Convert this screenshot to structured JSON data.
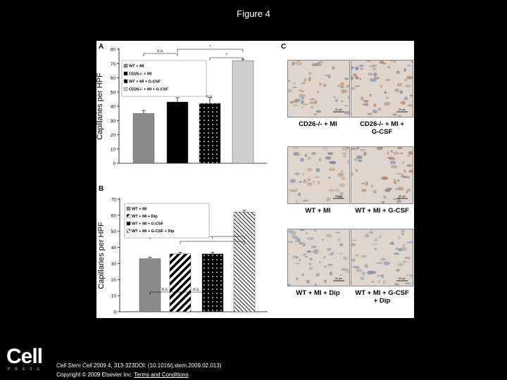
{
  "page_title": "Figure 4",
  "panels": {
    "a": "A",
    "b": "B",
    "c": "C"
  },
  "chart_data": [
    {
      "type": "bar",
      "panel": "A",
      "ylabel": "Capillaries per HPF",
      "ylim": [
        0,
        80
      ],
      "yticks": [
        0,
        10,
        20,
        30,
        40,
        50,
        60,
        70,
        80
      ],
      "categories": [
        "WT + MI",
        "CD26-/- + MI",
        "WT + MI + G-CSF",
        "CD26-/- + MI + G-CSF"
      ],
      "legend": [
        "WT + MI",
        "CD26-/- + MI",
        "WT + MI + G-CSF",
        "CD26-/- + MI + G-CSF"
      ],
      "values": [
        35,
        43,
        42,
        72
      ],
      "errors": [
        2,
        3,
        4,
        1
      ],
      "fills": [
        "#8a8a8a",
        "#000000",
        "dots",
        "#cfcfcf"
      ],
      "significance": [
        "n.s.",
        "*",
        "*",
        "n.s."
      ]
    },
    {
      "type": "bar",
      "panel": "B",
      "ylabel": "Capillaries per HPF",
      "ylim": [
        0,
        70
      ],
      "yticks": [
        0,
        10,
        20,
        30,
        40,
        50,
        60,
        70
      ],
      "categories": [
        "WT + MI",
        "WT + MI + Dip",
        "WT + MI + G-CSF",
        "WT + MI + G-CSF + Dip"
      ],
      "legend": [
        "WT + MI",
        "WT + MI + Dip",
        "WT + MI + G-CSF",
        "WT + MI + G-CSF + Dip"
      ],
      "values": [
        33,
        36,
        36,
        62
      ],
      "errors": [
        1,
        1,
        1,
        1
      ],
      "fills": [
        "#8a8a8a",
        "stripes",
        "dots",
        "hatch"
      ],
      "significance": [
        "*",
        "*",
        "n.s.",
        "n.s."
      ]
    }
  ],
  "micrographs": [
    {
      "label_lines": [
        "CD26-/- + MI"
      ],
      "scale": "50 µm",
      "tint": "#b79a7e"
    },
    {
      "label_lines": [
        "CD26-/- + MI +",
        "G-CSF"
      ],
      "scale": "50 µm",
      "tint": "#a9836a"
    },
    {
      "label_lines": [
        "WT + MI"
      ],
      "scale": "50 µm",
      "tint": "#bda58c"
    },
    {
      "label_lines": [
        "WT + MI + G-CSF"
      ],
      "scale": "50 µm",
      "tint": "#ad8a72"
    },
    {
      "label_lines": [
        "WT + MI + Dip"
      ],
      "scale": "50 µm",
      "tint": "#9aa3b4"
    },
    {
      "label_lines": [
        "WT + MI + G-CSF",
        "+ Dip"
      ],
      "scale": "50 µm",
      "tint": "#a4aab8"
    }
  ],
  "footer": {
    "logo": "Cell",
    "logo_sub": "PRESS",
    "journal": "Cell Stem Cell",
    "citation_rest": " 2009 4, 313-323DOI: (10.1016/j.stem.2009.02.013)",
    "copyright": "Copyright © 2009 Elsevier Inc.",
    "terms_link": "Terms and Conditions"
  }
}
